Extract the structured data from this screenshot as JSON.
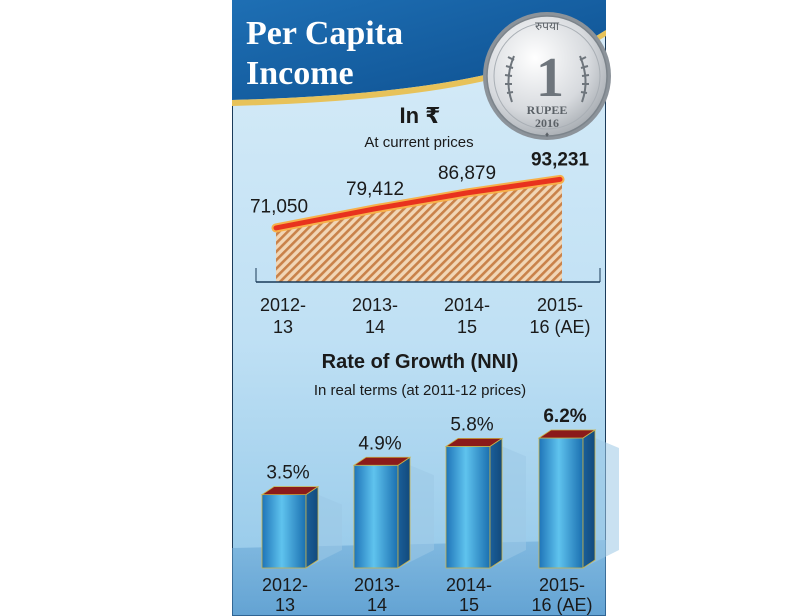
{
  "header": {
    "title_line1": "Per Capita",
    "title_line2": "Income",
    "coin": {
      "top_text": "रुपया",
      "numeral": "1",
      "denomination": "RUPEE",
      "year": "2016",
      "symbol": "♦"
    }
  },
  "chart_data": [
    {
      "type": "area",
      "title": "In ₹",
      "subtitle": "At current prices",
      "categories": [
        "2012-13",
        "2013-14",
        "2014-15",
        "2015-16 (AE)"
      ],
      "category_lines": [
        [
          "2012-",
          "13"
        ],
        [
          "2013-",
          "14"
        ],
        [
          "2014-",
          "15"
        ],
        [
          "2015-",
          "16 (AE)"
        ]
      ],
      "values": [
        71050,
        79412,
        86879,
        93231
      ],
      "value_labels": [
        "71,050",
        "79,412",
        "86,879",
        "93,231"
      ],
      "highlight_index": 3,
      "ylim": [
        45000,
        100000
      ],
      "colors": {
        "line": "#e8321e",
        "fill_hatch": "#c9824a",
        "fill_base": "#f1d6b6"
      }
    },
    {
      "type": "bar",
      "title": "Rate of Growth (NNI)",
      "subtitle": "In real terms (at 2011-12 prices)",
      "categories": [
        "2012-13",
        "2013-14",
        "2014-15",
        "2015-16 (AE)"
      ],
      "category_lines": [
        [
          "2012-",
          "13"
        ],
        [
          "2013-",
          "14"
        ],
        [
          "2014-",
          "15"
        ],
        [
          "2015-",
          "16 (AE)"
        ]
      ],
      "values": [
        3.5,
        4.9,
        5.8,
        6.2
      ],
      "value_labels": [
        "3.5%",
        "4.9%",
        "5.8%",
        "6.2%"
      ],
      "highlight_index": 3,
      "ylim": [
        0,
        7
      ],
      "colors": {
        "bar_top": "#8b1a1a",
        "bar_light": "#5fc3ee",
        "bar_dark": "#1a6fb0"
      }
    }
  ]
}
